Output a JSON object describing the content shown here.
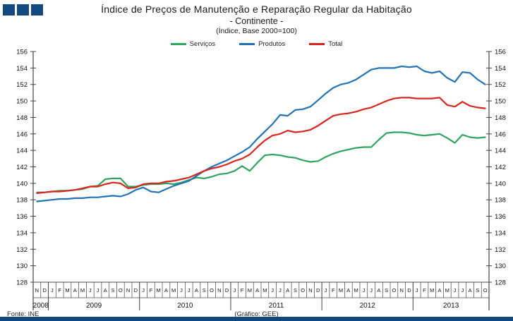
{
  "header": {
    "title": "Índice de Preços de Manutenção e Reparação Regular da Habitação",
    "subtitle": "- Continente -",
    "note": "(Índice, Base 2000=100)"
  },
  "footer": {
    "source": "Fonte: INE",
    "credit": "(Gráfico: GEE)"
  },
  "brand_color": "#14497f",
  "chart_data": {
    "type": "line",
    "title": "Índice de Preços de Manutenção e Reparação Regular da Habitação - Continente",
    "note": "(Índice, Base 2000=100)",
    "ylim": [
      128,
      156
    ],
    "ytick_step": 2,
    "yticks": [
      128,
      130,
      132,
      134,
      136,
      138,
      140,
      142,
      144,
      146,
      148,
      150,
      152,
      154,
      156
    ],
    "dual_y_axis": true,
    "grid": false,
    "legend_position": "top-center",
    "x_start": "Nov 2008",
    "x_end": "Oct 2013",
    "categories": [
      "N",
      "D",
      "J",
      "F",
      "M",
      "A",
      "M",
      "J",
      "J",
      "A",
      "S",
      "O",
      "N",
      "D",
      "J",
      "F",
      "M",
      "A",
      "M",
      "J",
      "J",
      "A",
      "S",
      "O",
      "N",
      "D",
      "J",
      "F",
      "M",
      "A",
      "M",
      "J",
      "J",
      "A",
      "S",
      "O",
      "N",
      "D",
      "J",
      "F",
      "M",
      "A",
      "M",
      "J",
      "J",
      "A",
      "S",
      "O",
      "N",
      "D",
      "J",
      "F",
      "M",
      "A",
      "M",
      "J",
      "J",
      "A",
      "S",
      "O"
    ],
    "year_groups": [
      {
        "label": "2008",
        "months": 2
      },
      {
        "label": "2009",
        "months": 12
      },
      {
        "label": "2010",
        "months": 12
      },
      {
        "label": "2011",
        "months": 12
      },
      {
        "label": "2012",
        "months": 12
      },
      {
        "label": "2013",
        "months": 10
      }
    ],
    "series": [
      {
        "id": "servicos",
        "name": "Serviços",
        "color": "#2fa45e",
        "values": [
          138.9,
          138.9,
          139.0,
          139.1,
          139.1,
          139.2,
          139.3,
          139.6,
          139.7,
          140.5,
          140.6,
          140.6,
          139.6,
          139.6,
          139.8,
          139.9,
          139.9,
          140.0,
          139.9,
          140.1,
          140.4,
          140.7,
          140.6,
          140.8,
          141.1,
          141.2,
          141.5,
          142.1,
          141.5,
          142.5,
          143.4,
          143.5,
          143.4,
          143.2,
          143.1,
          142.8,
          142.6,
          142.7,
          143.2,
          143.6,
          143.9,
          144.1,
          144.3,
          144.4,
          144.4,
          145.3,
          146.1,
          146.2,
          146.2,
          146.1,
          145.9,
          145.8,
          145.9,
          146.0,
          145.5,
          144.9,
          145.9,
          145.6,
          145.5,
          145.6
        ]
      },
      {
        "id": "produtos",
        "name": "Produtos",
        "color": "#2272b5",
        "values": [
          137.8,
          137.9,
          138.0,
          138.1,
          138.1,
          138.2,
          138.2,
          138.3,
          138.3,
          138.4,
          138.5,
          138.4,
          138.7,
          139.2,
          139.5,
          139.0,
          138.9,
          139.3,
          139.7,
          140.0,
          140.3,
          140.9,
          141.5,
          142.0,
          142.4,
          142.8,
          143.3,
          143.8,
          144.4,
          145.4,
          146.3,
          147.2,
          148.3,
          148.2,
          148.9,
          149.0,
          149.3,
          150.1,
          150.9,
          151.6,
          152.0,
          152.2,
          152.6,
          153.2,
          153.8,
          154.0,
          154.0,
          154.0,
          154.2,
          154.1,
          154.2,
          153.6,
          153.4,
          153.6,
          152.8,
          152.3,
          153.5,
          153.4,
          152.6,
          152.0
        ]
      },
      {
        "id": "total",
        "name": "Total",
        "color": "#d7261d",
        "values": [
          138.8,
          138.9,
          139.0,
          139.0,
          139.1,
          139.2,
          139.4,
          139.6,
          139.6,
          139.9,
          140.1,
          140.0,
          139.4,
          139.5,
          139.9,
          140.0,
          140.0,
          140.2,
          140.3,
          140.5,
          140.7,
          141.1,
          141.5,
          141.8,
          142.0,
          142.3,
          142.7,
          143.0,
          143.5,
          144.4,
          145.2,
          145.8,
          146.0,
          146.4,
          146.2,
          146.3,
          146.5,
          147.0,
          147.6,
          148.2,
          148.4,
          148.5,
          148.7,
          149.0,
          149.2,
          149.6,
          150.0,
          150.3,
          150.4,
          150.4,
          150.3,
          150.3,
          150.3,
          150.4,
          149.5,
          149.3,
          149.9,
          149.4,
          149.2,
          149.1
        ]
      }
    ]
  }
}
